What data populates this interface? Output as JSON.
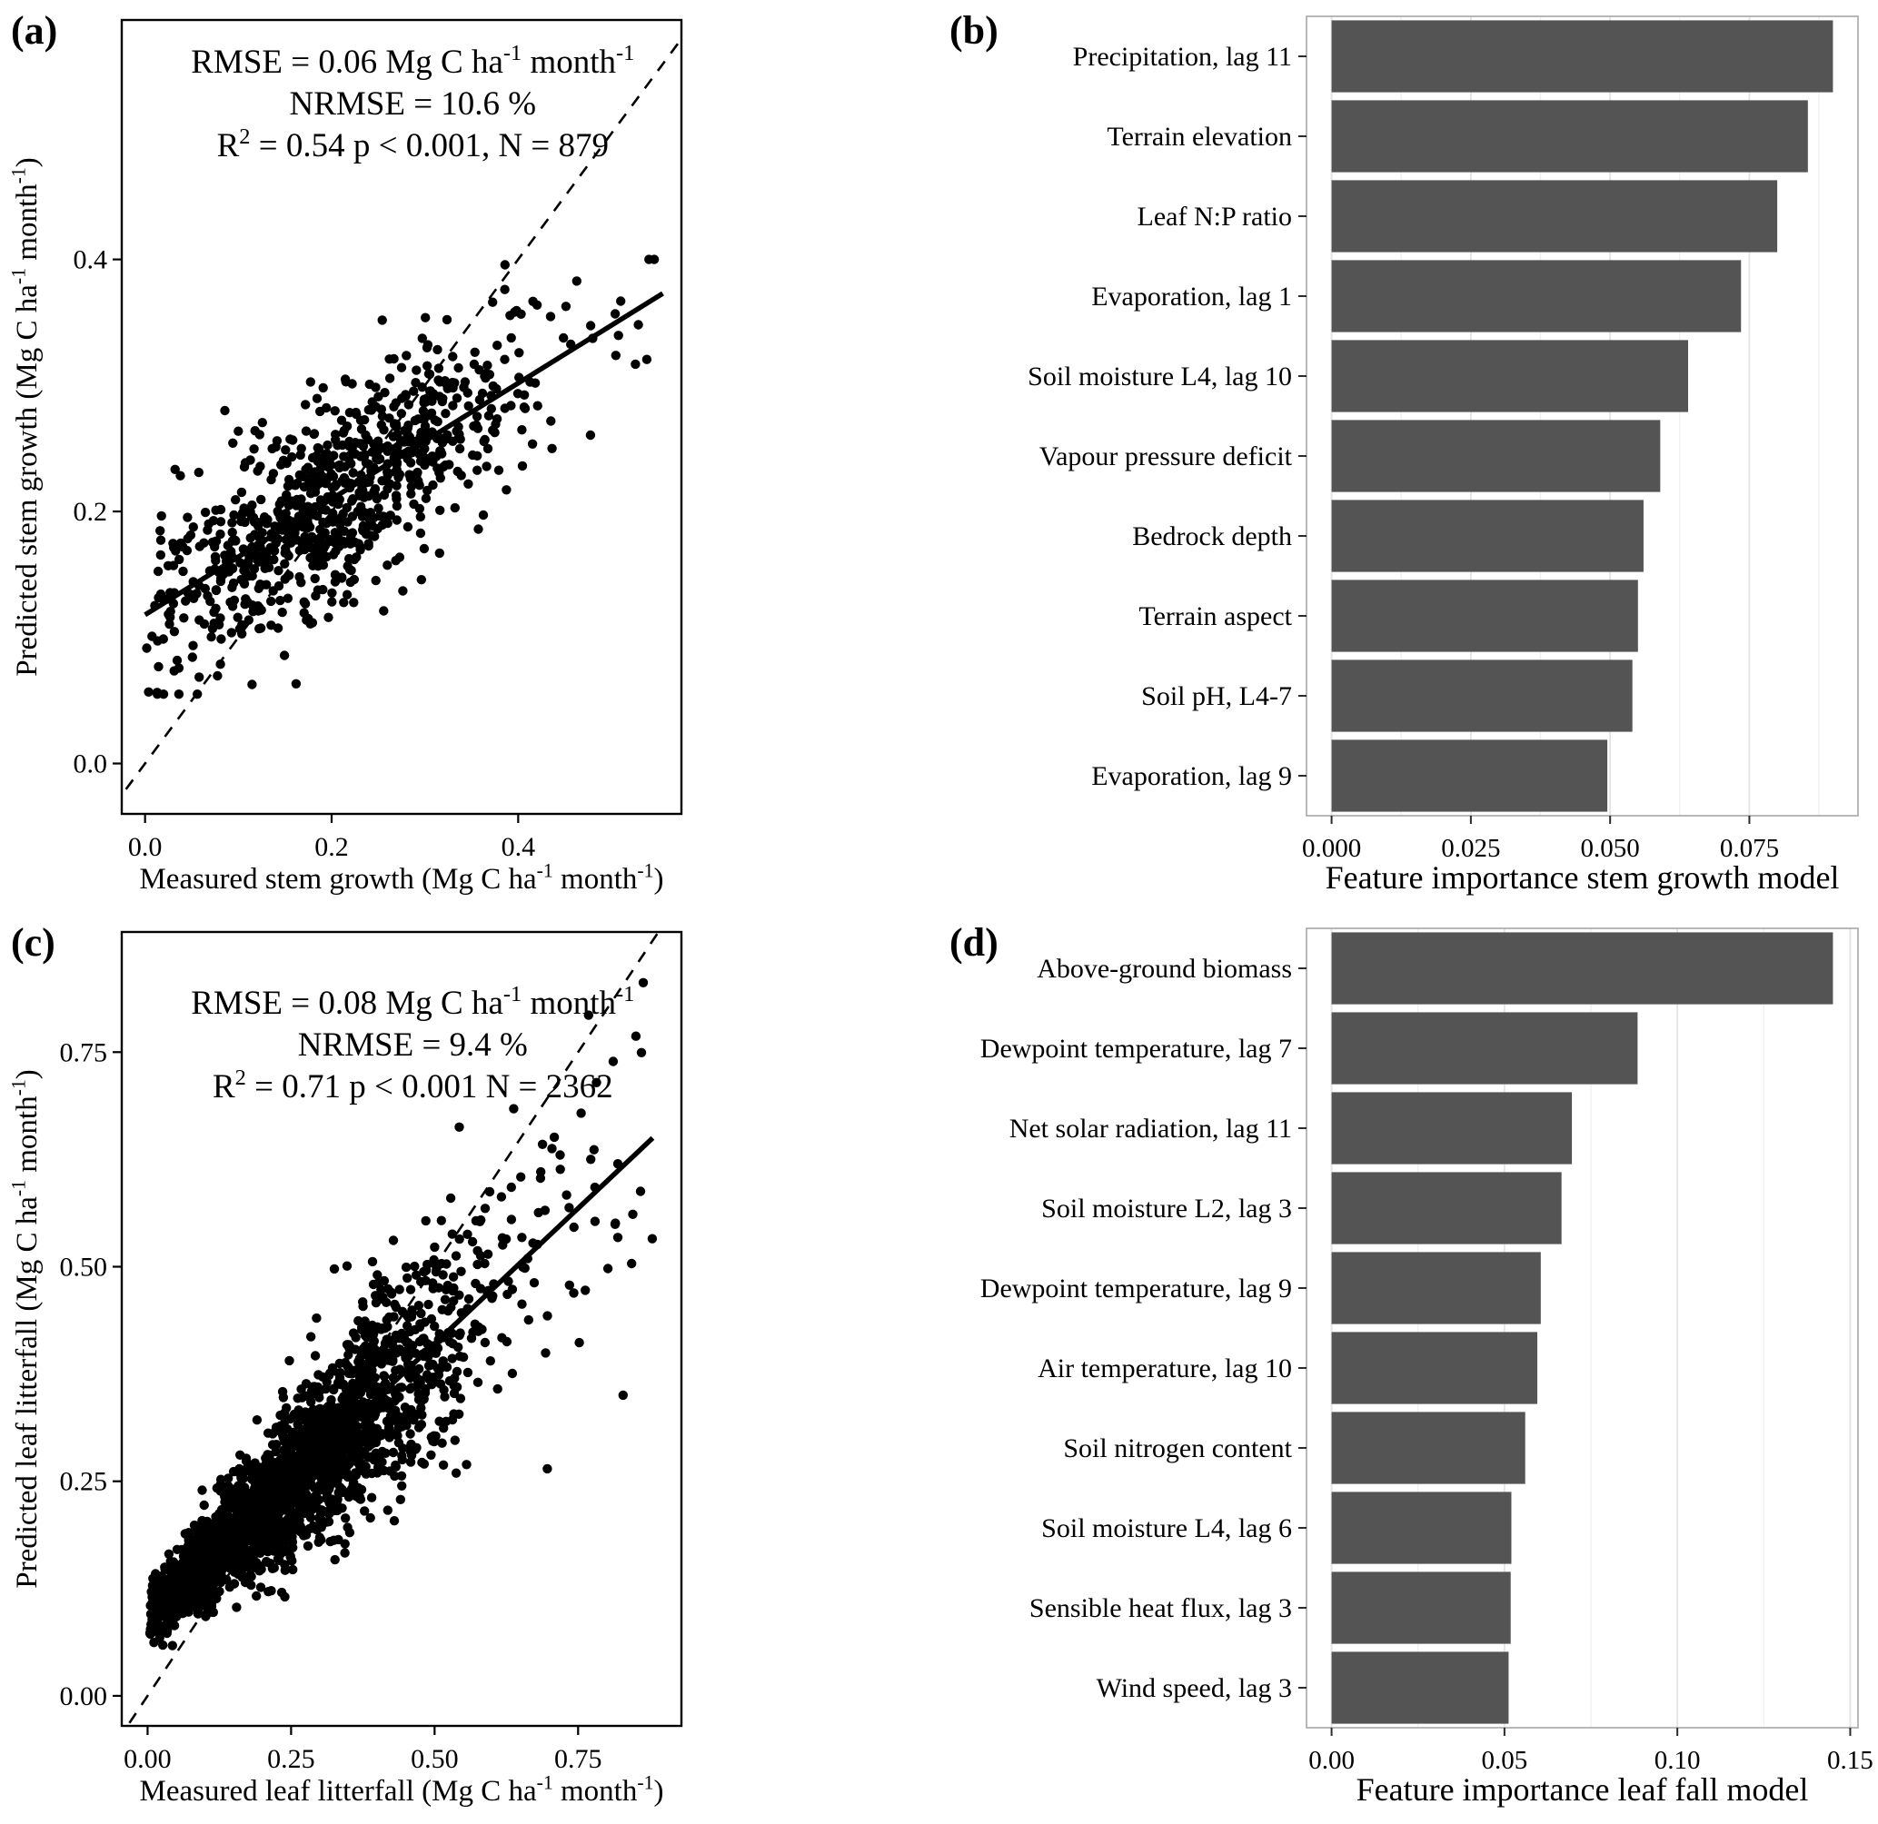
{
  "figure": {
    "background": "#ffffff",
    "text_color": "#000000"
  },
  "chart_data": [
    {
      "type": "scatter",
      "tag": "(a)",
      "xlabel": "Measured stem growth (Mg C ha^{-1} month^{-1})",
      "ylabel": "Predicted stem growth (Mg C ha^{-1} month^{-1})",
      "annotation": [
        "RMSE =  0.06  Mg C ha^{-1} month^{-1}",
        "NRMSE =  10.6 %",
        "R^{2} =  0.54  p < 0.001,  N =  879"
      ],
      "stats": {
        "rmse": 0.06,
        "nrmse_pct": 10.6,
        "r2": 0.54,
        "p": "p < 0.001",
        "n": 879
      },
      "x_domain": [
        -0.025,
        0.575
      ],
      "y_domain": [
        -0.04,
        0.59
      ],
      "x_ticks": [
        {
          "v": 0.0,
          "label": "0.0"
        },
        {
          "v": 0.2,
          "label": "0.2"
        },
        {
          "v": 0.4,
          "label": "0.4"
        }
      ],
      "y_ticks": [
        {
          "v": 0.0,
          "label": "0.0"
        },
        {
          "v": 0.2,
          "label": "0.2"
        },
        {
          "v": 0.4,
          "label": "0.4"
        }
      ],
      "identity_line": "dashed 1:1 line",
      "fit_line": {
        "x1": 0.0,
        "y1": 0.118,
        "x2": 0.555,
        "y2": 0.373
      },
      "ann_y": 80,
      "points_spec": {
        "n": 879,
        "seed": 20,
        "x_mean": 0.2,
        "x_sd": 0.095,
        "x_min": 0.001,
        "x_max": 0.555,
        "mix_frac": 0.03,
        "mix_min": 0.36,
        "mix_max": 0.555,
        "intercept": 0.118,
        "slope": 0.46,
        "noise_base": 0.04,
        "noise_prop": 0,
        "y_min": 0.055,
        "y_max": 0.4
      }
    },
    {
      "type": "bar",
      "tag": "(b)",
      "xlabel": "Feature importance stem growth model",
      "categories": [
        "Precipitation, lag 11",
        "Terrain elevation",
        "Leaf N:P ratio",
        "Evaporation, lag 1",
        "Soil moisture L4, lag 10",
        "Vapour pressure deficit",
        "Bedrock depth",
        "Terrain aspect",
        "Soil pH, L4-7",
        "Evaporation, lag 9"
      ],
      "values": [
        0.09,
        0.0855,
        0.08,
        0.0735,
        0.064,
        0.059,
        0.056,
        0.055,
        0.054,
        0.0495
      ],
      "x_domain": [
        -0.0045,
        0.0945
      ],
      "x_ticks": [
        {
          "v": 0,
          "label": "0.000"
        },
        {
          "v": 0.025,
          "label": "0.025"
        },
        {
          "v": 0.05,
          "label": "0.050"
        },
        {
          "v": 0.075,
          "label": "0.075"
        }
      ],
      "x_minor": [
        0.0125,
        0.0375,
        0.0625,
        0.0875
      ],
      "bar_color": "#545454"
    },
    {
      "type": "scatter",
      "tag": "(c)",
      "xlabel": "Measured leaf litterfall (Mg C ha^{-1} month^{-1})",
      "ylabel": "Predicted leaf litterfall (Mg C ha^{-1} month^{-1})",
      "annotation": [
        "RMSE =  0.08  Mg C ha^{-1} month^{-1}",
        "NRMSE =  9.4 %",
        "R^{2} =  0.71  p < 0.001  N =  2362"
      ],
      "stats": {
        "rmse": 0.08,
        "nrmse_pct": 9.4,
        "r2": 0.71,
        "p": "p < 0.001",
        "n": 2362
      },
      "x_domain": [
        -0.045,
        0.93
      ],
      "y_domain": [
        -0.035,
        0.89
      ],
      "x_ticks": [
        {
          "v": 0,
          "label": "0.00"
        },
        {
          "v": 0.25,
          "label": "0.25"
        },
        {
          "v": 0.5,
          "label": "0.50"
        },
        {
          "v": 0.75,
          "label": "0.75"
        }
      ],
      "y_ticks": [
        {
          "v": 0,
          "label": "0.00"
        },
        {
          "v": 0.25,
          "label": "0.25"
        },
        {
          "v": 0.5,
          "label": "0.50"
        },
        {
          "v": 0.75,
          "label": "0.75"
        }
      ],
      "identity_line": "dashed 1:1 line",
      "fit_line": {
        "x1": 0.005,
        "y1": 0.098,
        "x2": 0.88,
        "y2": 0.65
      },
      "ann_y": 112,
      "points_spec": {
        "n": 2362,
        "seed": 33,
        "x_mean": 0.24,
        "x_sd": 0.15,
        "x_min": 0.004,
        "x_max": 0.88,
        "mix_frac": 0.03,
        "mix_min": 0.45,
        "mix_max": 0.88,
        "intercept": 0.095,
        "slope": 0.63,
        "noise_base": 0.016,
        "noise_prop": 0.11,
        "y_min": 0.003,
        "y_max": 0.85
      }
    },
    {
      "type": "bar",
      "tag": "(d)",
      "xlabel": "Feature importance leaf fall model",
      "categories": [
        "Above-ground biomass",
        "Dewpoint temperature, lag 7",
        "Net solar radiation, lag 11",
        "Soil moisture L2, lag 3",
        "Dewpoint temperature, lag 9",
        "Air temperature, lag 10",
        "Soil nitrogen content",
        "Soil moisture L4, lag 6",
        "Sensible heat flux, lag 3",
        "Wind speed, lag 3"
      ],
      "values": [
        0.145,
        0.0885,
        0.0695,
        0.0665,
        0.0605,
        0.0595,
        0.056,
        0.052,
        0.0518,
        0.0512
      ],
      "x_domain": [
        -0.00725,
        0.15225
      ],
      "x_ticks": [
        {
          "v": 0,
          "label": "0.00"
        },
        {
          "v": 0.05,
          "label": "0.05"
        },
        {
          "v": 0.1,
          "label": "0.10"
        },
        {
          "v": 0.15,
          "label": "0.15"
        }
      ],
      "x_minor": [
        0.025,
        0.075,
        0.125
      ],
      "bar_color": "#545454"
    }
  ]
}
